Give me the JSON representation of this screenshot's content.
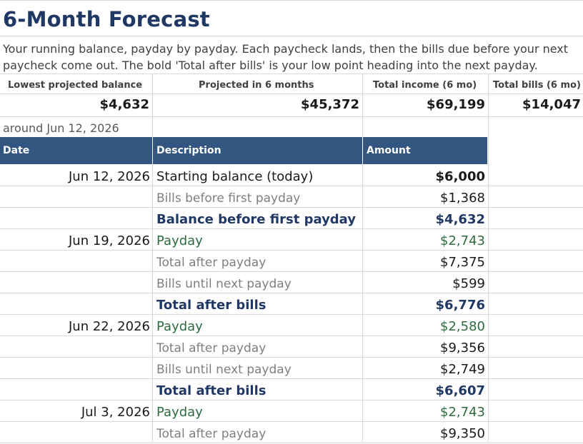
{
  "title": "6-Month Forecast",
  "description": "Your running balance, payday by payday. Each paycheck lands, then the bills due before your next paycheck come out. The bold 'Total after bills' is your low point heading into the next payday.",
  "summary": {
    "labels": [
      "Lowest projected balance",
      "Projected in 6 months",
      "Total income (6 mo)",
      "Total bills (6 mo)"
    ],
    "values": [
      "$4,632",
      "$45,372",
      "$69,199",
      "$14,047"
    ],
    "note": "around Jun 12, 2026"
  },
  "table": {
    "headers": [
      "Date",
      "Description",
      "Amount"
    ],
    "rows": [
      {
        "date": "Jun 12, 2026",
        "description": "Starting balance (today)",
        "amount": "$6,000",
        "style": "start"
      },
      {
        "date": "",
        "description": "Bills before first payday",
        "amount": "$1,368",
        "style": "sub"
      },
      {
        "date": "",
        "description": "Balance before first payday",
        "amount": "$4,632",
        "style": "bold"
      },
      {
        "date": "Jun 19, 2026",
        "description": "Payday",
        "amount": "$2,743",
        "style": "pay"
      },
      {
        "date": "",
        "description": "Total after payday",
        "amount": "$7,375",
        "style": "sub"
      },
      {
        "date": "",
        "description": "Bills until next payday",
        "amount": "$599",
        "style": "sub"
      },
      {
        "date": "",
        "description": "Total after bills",
        "amount": "$6,776",
        "style": "bold"
      },
      {
        "date": "Jun 22, 2026",
        "description": "Payday",
        "amount": "$2,580",
        "style": "pay"
      },
      {
        "date": "",
        "description": "Total after payday",
        "amount": "$9,356",
        "style": "sub"
      },
      {
        "date": "",
        "description": "Bills until next payday",
        "amount": "$2,749",
        "style": "sub"
      },
      {
        "date": "",
        "description": "Total after bills",
        "amount": "$6,607",
        "style": "bold"
      },
      {
        "date": "Jul 3, 2026",
        "description": "Payday",
        "amount": "$2,743",
        "style": "pay"
      },
      {
        "date": "",
        "description": "Total after payday",
        "amount": "$9,350",
        "style": "sub"
      }
    ]
  },
  "colors": {
    "header_bg": "#325680",
    "title": "#1f3864",
    "payday_text": "#2e6b3c",
    "gridline": "#d9d9d9"
  }
}
